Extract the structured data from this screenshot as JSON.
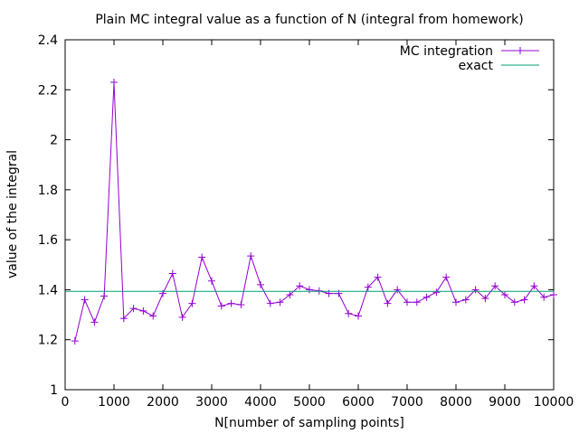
{
  "chart_data": {
    "type": "line",
    "title": "Plain MC integral value as a function of N (integral from homework)",
    "xlabel": "N[number of sampling points]",
    "ylabel": "value of the integral",
    "xlim": [
      0,
      10000
    ],
    "ylim": [
      1,
      2.4
    ],
    "xticks": [
      0,
      1000,
      2000,
      3000,
      4000,
      5000,
      6000,
      7000,
      8000,
      9000,
      10000
    ],
    "yticks": [
      1,
      1.2,
      1.4,
      1.6,
      1.8,
      2,
      2.2,
      2.4
    ],
    "grid": false,
    "legend_position": "top-right",
    "series": [
      {
        "name": "MC integration",
        "color": "#9400d3",
        "marker": "plus",
        "x": [
          200,
          400,
          600,
          800,
          1000,
          1200,
          1400,
          1600,
          1800,
          2000,
          2200,
          2400,
          2600,
          2800,
          3000,
          3200,
          3400,
          3600,
          3800,
          4000,
          4200,
          4400,
          4600,
          4800,
          5000,
          5200,
          5400,
          5600,
          5800,
          6000,
          6200,
          6400,
          6600,
          6800,
          7000,
          7200,
          7400,
          7600,
          7800,
          8000,
          8200,
          8400,
          8600,
          8800,
          9000,
          9200,
          9400,
          9600,
          9800,
          10000
        ],
        "y": [
          1.195,
          1.36,
          1.27,
          1.375,
          2.23,
          1.285,
          1.325,
          1.315,
          1.295,
          1.385,
          1.465,
          1.29,
          1.345,
          1.53,
          1.435,
          1.335,
          1.345,
          1.34,
          1.535,
          1.42,
          1.345,
          1.35,
          1.38,
          1.415,
          1.4,
          1.395,
          1.385,
          1.385,
          1.305,
          1.295,
          1.41,
          1.45,
          1.345,
          1.4,
          1.35,
          1.35,
          1.37,
          1.39,
          1.45,
          1.35,
          1.36,
          1.4,
          1.365,
          1.415,
          1.38,
          1.35,
          1.36,
          1.415,
          1.37,
          1.38
        ]
      },
      {
        "name": "exact",
        "color": "#009e73",
        "marker": "none",
        "x": [
          0,
          10000
        ],
        "y": [
          1.3932,
          1.3932
        ]
      }
    ]
  }
}
